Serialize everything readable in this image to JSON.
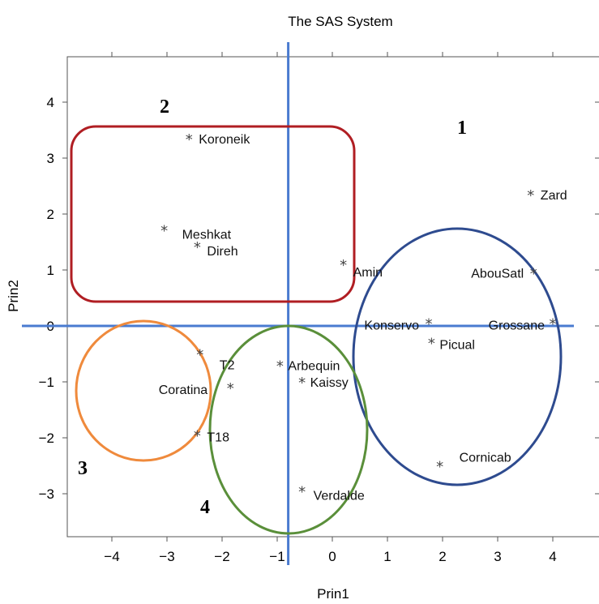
{
  "chart_data": {
    "type": "scatter",
    "title": "The SAS System",
    "xlabel": "Prin1",
    "ylabel": "Prin2",
    "xlim": [
      -4.9,
      4.4
    ],
    "ylim": [
      -3.9,
      4.8
    ],
    "xticks": [
      -4,
      -3,
      -2,
      -1,
      0,
      1,
      2,
      3,
      4
    ],
    "yticks": [
      -3,
      -2,
      -1,
      0,
      1,
      2,
      3,
      4
    ],
    "reference_lines": {
      "x": -0.8,
      "y": 0
    },
    "points": [
      {
        "label": "Koroneik",
        "x": -2.6,
        "y": 3.35
      },
      {
        "label": "Meshkat",
        "x": -3.05,
        "y": 1.72
      },
      {
        "label": "Direh",
        "x": -2.45,
        "y": 1.42
      },
      {
        "label": "Zard",
        "x": 3.6,
        "y": 2.35
      },
      {
        "label": "Amin",
        "x": 0.2,
        "y": 1.1
      },
      {
        "label": "AbouSatl",
        "x": 3.65,
        "y": 0.95
      },
      {
        "label": "Konservo",
        "x": 1.75,
        "y": 0.05
      },
      {
        "label": "Grossane",
        "x": 4.0,
        "y": 0.05
      },
      {
        "label": "Picual",
        "x": 1.8,
        "y": -0.3
      },
      {
        "label": "T2",
        "x": -2.4,
        "y": -0.5
      },
      {
        "label": "Coratina",
        "x": -1.85,
        "y": -1.1
      },
      {
        "label": "Arbequin",
        "x": -0.95,
        "y": -0.7
      },
      {
        "label": "Kaissy",
        "x": -0.55,
        "y": -1.0
      },
      {
        "label": "T18",
        "x": -2.45,
        "y": -1.95
      },
      {
        "label": "Cornicab",
        "x": 1.95,
        "y": -2.5
      },
      {
        "label": "Verdalde",
        "x": -0.55,
        "y": -2.95
      }
    ],
    "groups": [
      {
        "label": "1",
        "color": "#2e4b8f"
      },
      {
        "label": "2",
        "color": "#b01e23"
      },
      {
        "label": "3",
        "color": "#ef8a3c"
      },
      {
        "label": "4",
        "color": "#5a8f3a"
      }
    ],
    "reference_line_color": "#4a7bd0"
  }
}
